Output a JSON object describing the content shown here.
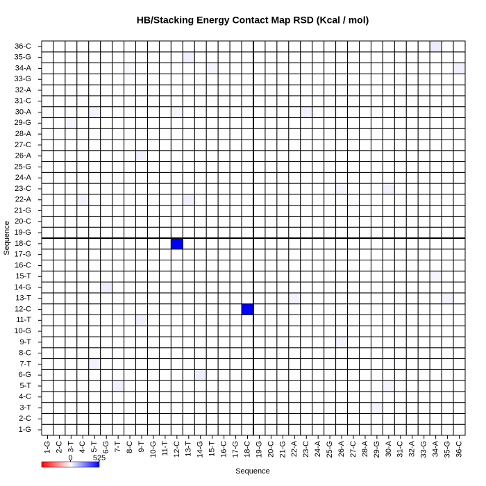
{
  "chart_data": {
    "type": "heatmap",
    "title": "HB/Stacking Energy Contact Map RSD (Kcal / mol)",
    "x_label": "Sequence",
    "y_label": "Sequence",
    "categories": [
      "1-G",
      "2-C",
      "3-T",
      "4-C",
      "5-T",
      "6-G",
      "7-T",
      "8-C",
      "9-T",
      "10-G",
      "11-T",
      "12-C",
      "13-T",
      "14-G",
      "15-T",
      "16-C",
      "17-G",
      "18-C",
      "19-G",
      "20-C",
      "21-G",
      "22-A",
      "23-C",
      "24-A",
      "25-G",
      "26-A",
      "27-C",
      "28-A",
      "29-G",
      "30-A",
      "31-C",
      "32-A",
      "33-G",
      "34-A",
      "35-G",
      "36-C"
    ],
    "divider_after": "18-C",
    "colorscale": [
      "#ff0000",
      "#ffffff",
      "#0000ff"
    ],
    "clim": [
      -525,
      525
    ],
    "cticks": [
      0,
      525
    ],
    "z": [
      [
        0,
        0,
        0,
        0,
        0,
        0,
        0,
        0,
        0,
        0,
        0,
        0,
        0,
        0,
        0,
        0,
        0,
        0,
        0,
        0,
        0,
        0,
        0,
        0,
        0,
        0,
        0,
        0,
        0,
        0,
        0,
        0,
        0,
        0,
        0,
        0
      ],
      [
        0,
        0,
        0,
        0,
        0,
        0,
        0,
        0,
        0,
        0,
        0,
        0,
        0,
        0,
        0,
        0,
        0,
        0,
        0,
        0,
        0,
        0,
        0,
        0,
        0,
        0,
        0,
        0,
        0,
        0,
        0,
        0,
        0,
        0,
        0,
        0
      ],
      [
        0,
        0,
        0,
        0,
        0,
        0,
        0,
        0,
        0,
        0,
        0,
        0,
        0,
        0,
        0,
        0,
        0,
        0,
        0,
        0,
        0,
        0,
        0,
        0,
        0,
        0,
        0,
        0,
        25,
        0,
        0,
        0,
        0,
        0,
        0,
        0
      ],
      [
        0,
        0,
        0,
        0,
        0,
        0,
        0,
        0,
        0,
        0,
        0,
        0,
        0,
        0,
        0,
        0,
        0,
        0,
        0,
        0,
        0,
        0,
        0,
        0,
        0,
        0,
        0,
        0,
        0,
        0,
        0,
        0,
        0,
        0,
        0,
        0
      ],
      [
        0,
        0,
        0,
        0,
        0,
        0,
        30,
        0,
        0,
        0,
        0,
        0,
        0,
        0,
        0,
        0,
        0,
        0,
        0,
        0,
        0,
        0,
        0,
        0,
        0,
        0,
        0,
        0,
        0,
        20,
        0,
        0,
        0,
        0,
        0,
        0
      ],
      [
        0,
        0,
        0,
        0,
        0,
        0,
        0,
        0,
        0,
        0,
        0,
        0,
        0,
        40,
        0,
        0,
        0,
        0,
        0,
        0,
        0,
        0,
        0,
        0,
        0,
        0,
        0,
        0,
        0,
        0,
        0,
        0,
        0,
        0,
        0,
        0
      ],
      [
        0,
        0,
        0,
        0,
        25,
        0,
        0,
        0,
        0,
        0,
        0,
        0,
        0,
        0,
        0,
        0,
        0,
        0,
        0,
        0,
        0,
        0,
        0,
        0,
        0,
        0,
        0,
        0,
        0,
        0,
        0,
        0,
        0,
        0,
        0,
        0
      ],
      [
        0,
        0,
        0,
        0,
        0,
        0,
        0,
        0,
        0,
        0,
        0,
        0,
        0,
        0,
        0,
        0,
        0,
        0,
        0,
        0,
        0,
        0,
        0,
        0,
        0,
        0,
        0,
        0,
        0,
        0,
        0,
        0,
        0,
        0,
        0,
        0
      ],
      [
        0,
        0,
        0,
        0,
        0,
        0,
        0,
        0,
        0,
        0,
        0,
        0,
        0,
        0,
        0,
        0,
        0,
        0,
        0,
        0,
        0,
        0,
        0,
        0,
        0,
        25,
        0,
        0,
        0,
        0,
        0,
        0,
        0,
        0,
        0,
        0
      ],
      [
        0,
        0,
        0,
        0,
        0,
        0,
        0,
        0,
        0,
        0,
        0,
        0,
        0,
        0,
        0,
        0,
        0,
        0,
        0,
        0,
        0,
        0,
        0,
        0,
        0,
        0,
        0,
        0,
        0,
        0,
        0,
        0,
        0,
        0,
        0,
        0
      ],
      [
        0,
        0,
        0,
        0,
        0,
        0,
        0,
        0,
        30,
        0,
        0,
        0,
        0,
        0,
        0,
        0,
        0,
        0,
        0,
        0,
        0,
        0,
        0,
        0,
        0,
        0,
        0,
        0,
        0,
        0,
        0,
        0,
        0,
        0,
        0,
        0
      ],
      [
        0,
        0,
        0,
        0,
        0,
        0,
        0,
        0,
        0,
        0,
        0,
        0,
        0,
        0,
        0,
        0,
        0,
        525,
        0,
        0,
        0,
        0,
        0,
        0,
        0,
        0,
        0,
        0,
        0,
        0,
        0,
        0,
        0,
        0,
        0,
        0
      ],
      [
        0,
        0,
        0,
        0,
        0,
        0,
        0,
        0,
        0,
        0,
        0,
        0,
        0,
        0,
        0,
        0,
        0,
        0,
        0,
        0,
        0,
        25,
        0,
        0,
        0,
        0,
        0,
        0,
        0,
        0,
        0,
        0,
        0,
        0,
        25,
        0
      ],
      [
        0,
        0,
        0,
        0,
        0,
        35,
        0,
        0,
        0,
        0,
        0,
        0,
        0,
        0,
        0,
        0,
        0,
        0,
        0,
        0,
        0,
        0,
        0,
        0,
        0,
        0,
        0,
        0,
        0,
        0,
        0,
        0,
        0,
        0,
        0,
        0
      ],
      [
        0,
        0,
        0,
        0,
        0,
        0,
        0,
        0,
        0,
        0,
        0,
        0,
        0,
        0,
        0,
        0,
        0,
        0,
        0,
        0,
        0,
        0,
        0,
        0,
        0,
        0,
        0,
        0,
        0,
        0,
        0,
        0,
        0,
        20,
        0,
        0
      ],
      [
        0,
        0,
        0,
        0,
        0,
        0,
        0,
        0,
        0,
        0,
        0,
        0,
        0,
        0,
        0,
        0,
        0,
        0,
        0,
        0,
        0,
        0,
        0,
        0,
        0,
        0,
        0,
        0,
        0,
        0,
        0,
        0,
        0,
        0,
        0,
        0
      ],
      [
        0,
        0,
        0,
        0,
        0,
        0,
        0,
        0,
        0,
        0,
        0,
        0,
        0,
        0,
        0,
        0,
        0,
        0,
        0,
        0,
        0,
        0,
        0,
        0,
        0,
        0,
        0,
        0,
        0,
        0,
        0,
        0,
        0,
        0,
        0,
        0
      ],
      [
        0,
        0,
        0,
        0,
        0,
        0,
        0,
        0,
        0,
        0,
        0,
        525,
        0,
        0,
        0,
        0,
        0,
        0,
        0,
        0,
        0,
        0,
        0,
        0,
        0,
        0,
        0,
        0,
        0,
        0,
        0,
        0,
        0,
        0,
        0,
        0
      ],
      [
        0,
        0,
        0,
        0,
        0,
        0,
        0,
        0,
        0,
        0,
        0,
        0,
        0,
        0,
        0,
        0,
        0,
        0,
        0,
        0,
        0,
        0,
        0,
        0,
        0,
        0,
        0,
        0,
        0,
        0,
        0,
        0,
        0,
        0,
        0,
        0
      ],
      [
        0,
        0,
        0,
        0,
        0,
        0,
        0,
        0,
        0,
        0,
        0,
        0,
        0,
        0,
        0,
        0,
        0,
        0,
        0,
        0,
        0,
        0,
        0,
        0,
        0,
        0,
        0,
        0,
        0,
        0,
        0,
        0,
        0,
        0,
        0,
        0
      ],
      [
        0,
        0,
        0,
        0,
        0,
        0,
        0,
        0,
        0,
        0,
        0,
        0,
        0,
        0,
        0,
        0,
        0,
        0,
        0,
        0,
        0,
        0,
        0,
        0,
        0,
        0,
        0,
        0,
        0,
        0,
        0,
        0,
        0,
        0,
        0,
        0
      ],
      [
        0,
        0,
        0,
        25,
        0,
        0,
        0,
        0,
        0,
        0,
        0,
        0,
        30,
        0,
        0,
        0,
        0,
        0,
        0,
        0,
        0,
        0,
        0,
        0,
        0,
        0,
        0,
        0,
        0,
        0,
        0,
        0,
        0,
        0,
        0,
        0
      ],
      [
        0,
        0,
        0,
        0,
        0,
        0,
        0,
        0,
        0,
        0,
        0,
        0,
        0,
        0,
        0,
        0,
        0,
        0,
        0,
        0,
        0,
        0,
        0,
        0,
        0,
        20,
        0,
        0,
        0,
        30,
        0,
        0,
        0,
        0,
        0,
        0
      ],
      [
        0,
        0,
        0,
        0,
        0,
        0,
        0,
        0,
        0,
        0,
        0,
        0,
        0,
        0,
        0,
        0,
        0,
        0,
        0,
        0,
        0,
        0,
        0,
        0,
        0,
        0,
        0,
        0,
        0,
        0,
        0,
        0,
        0,
        0,
        0,
        0
      ],
      [
        0,
        0,
        0,
        0,
        0,
        0,
        0,
        0,
        0,
        0,
        0,
        0,
        0,
        0,
        0,
        0,
        0,
        0,
        0,
        0,
        0,
        0,
        0,
        0,
        0,
        0,
        0,
        0,
        0,
        0,
        0,
        0,
        0,
        0,
        0,
        0
      ],
      [
        0,
        0,
        0,
        0,
        0,
        0,
        0,
        0,
        30,
        0,
        0,
        0,
        0,
        0,
        0,
        0,
        0,
        0,
        0,
        0,
        0,
        0,
        0,
        0,
        0,
        0,
        0,
        0,
        0,
        0,
        0,
        0,
        0,
        0,
        0,
        0
      ],
      [
        0,
        0,
        0,
        0,
        0,
        0,
        0,
        0,
        0,
        0,
        0,
        0,
        0,
        0,
        0,
        0,
        0,
        0,
        0,
        0,
        0,
        0,
        0,
        0,
        0,
        0,
        0,
        0,
        0,
        0,
        0,
        0,
        0,
        0,
        0,
        0
      ],
      [
        0,
        0,
        0,
        0,
        0,
        0,
        0,
        0,
        0,
        0,
        0,
        0,
        0,
        0,
        0,
        0,
        0,
        0,
        0,
        0,
        0,
        0,
        0,
        0,
        0,
        0,
        0,
        0,
        0,
        0,
        0,
        0,
        0,
        0,
        0,
        0
      ],
      [
        0,
        0,
        20,
        0,
        0,
        0,
        0,
        0,
        0,
        0,
        0,
        0,
        0,
        0,
        0,
        0,
        0,
        0,
        0,
        0,
        0,
        0,
        0,
        0,
        0,
        0,
        0,
        0,
        0,
        0,
        0,
        0,
        0,
        0,
        0,
        0
      ],
      [
        0,
        0,
        0,
        0,
        25,
        0,
        0,
        0,
        0,
        0,
        0,
        20,
        0,
        0,
        0,
        0,
        0,
        0,
        0,
        0,
        0,
        0,
        30,
        0,
        0,
        0,
        0,
        0,
        0,
        0,
        0,
        0,
        0,
        0,
        0,
        0
      ],
      [
        0,
        0,
        0,
        0,
        0,
        0,
        0,
        0,
        0,
        0,
        0,
        0,
        0,
        0,
        0,
        0,
        0,
        0,
        0,
        0,
        0,
        0,
        0,
        0,
        0,
        0,
        0,
        0,
        0,
        0,
        0,
        0,
        0,
        0,
        0,
        0
      ],
      [
        0,
        0,
        0,
        0,
        0,
        0,
        0,
        0,
        0,
        0,
        0,
        0,
        0,
        0,
        0,
        0,
        0,
        0,
        0,
        0,
        0,
        0,
        0,
        0,
        0,
        0,
        0,
        0,
        0,
        0,
        0,
        0,
        0,
        0,
        0,
        0
      ],
      [
        0,
        0,
        0,
        0,
        0,
        0,
        0,
        0,
        0,
        0,
        0,
        0,
        0,
        0,
        0,
        0,
        0,
        0,
        0,
        0,
        0,
        0,
        0,
        0,
        0,
        0,
        0,
        0,
        0,
        0,
        0,
        0,
        0,
        0,
        0,
        0
      ],
      [
        0,
        0,
        0,
        0,
        0,
        0,
        0,
        15,
        0,
        0,
        0,
        0,
        0,
        0,
        20,
        0,
        0,
        0,
        0,
        0,
        0,
        0,
        0,
        0,
        0,
        0,
        0,
        0,
        0,
        0,
        0,
        0,
        0,
        0,
        0,
        30
      ],
      [
        0,
        0,
        0,
        0,
        0,
        0,
        0,
        0,
        0,
        0,
        0,
        0,
        30,
        0,
        0,
        0,
        0,
        0,
        0,
        0,
        0,
        0,
        0,
        0,
        0,
        0,
        0,
        0,
        0,
        0,
        0,
        0,
        0,
        0,
        0,
        0
      ],
      [
        0,
        0,
        0,
        0,
        0,
        0,
        0,
        0,
        0,
        0,
        0,
        0,
        0,
        0,
        0,
        0,
        0,
        0,
        0,
        0,
        0,
        0,
        0,
        0,
        0,
        0,
        0,
        0,
        0,
        0,
        0,
        0,
        0,
        40,
        0,
        0
      ]
    ]
  }
}
